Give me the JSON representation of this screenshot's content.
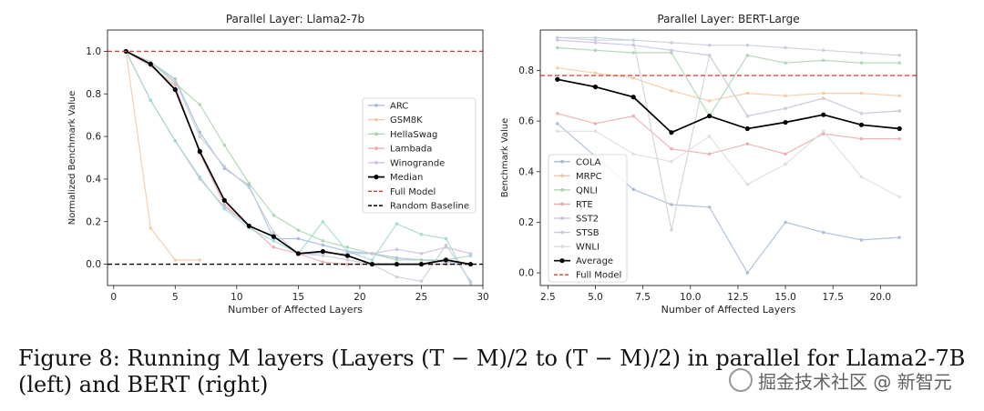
{
  "caption": {
    "line1": "Figure 8: Running M layers (Layers (T − M)/2 to (T − M)/2) in parallel for Llama2-7B",
    "line2": "(left) and BERT (right)"
  },
  "watermark": {
    "text": "掘金技术社区 @ 新智元",
    "icon": "watermark-logo-icon"
  },
  "chart_data": [
    {
      "type": "line",
      "title": "Parallel Layer: Llama2-7b",
      "xlabel": "Number of Affected Layers",
      "ylabel": "Normalized Benchmark Value",
      "xlim": [
        -0.5,
        30
      ],
      "ylim": [
        -0.1,
        1.1
      ],
      "xticks": [
        0,
        5,
        10,
        15,
        20,
        25,
        30
      ],
      "yticks": [
        0.0,
        0.2,
        0.4,
        0.6,
        0.8,
        1.0
      ],
      "legend_position": "center-right",
      "series": [
        {
          "name": "ARC",
          "color": "#a3b9d8",
          "x": [
            1,
            3,
            5,
            7,
            9,
            11,
            13,
            15,
            17,
            19,
            21,
            23,
            25,
            27,
            29
          ],
          "y": [
            1.0,
            0.95,
            0.87,
            0.62,
            0.45,
            0.37,
            0.12,
            0.12,
            0.09,
            0.06,
            0.05,
            0.03,
            0.02,
            0.01,
            0.0
          ]
        },
        {
          "name": "GSM8K",
          "color": "#f3c8a0",
          "x": [
            1,
            3,
            5,
            7
          ],
          "y": [
            1.0,
            0.17,
            0.02,
            0.02
          ]
        },
        {
          "name": "HellaSwag",
          "color": "#a8d3ab",
          "x": [
            1,
            3,
            5,
            7,
            9,
            11,
            13,
            15,
            17,
            19,
            21,
            23,
            25,
            27,
            29
          ],
          "y": [
            1.0,
            0.95,
            0.85,
            0.75,
            0.56,
            0.38,
            0.23,
            0.16,
            0.11,
            0.08,
            0.05,
            0.02,
            0.02,
            0.02,
            0.04
          ]
        },
        {
          "name": "Lambada",
          "color": "#eaa9ad",
          "x": [
            1,
            3,
            5,
            7,
            9,
            11,
            13,
            15,
            17,
            19,
            21,
            23,
            25,
            27,
            29
          ],
          "y": [
            1.0,
            0.93,
            0.84,
            0.52,
            0.28,
            0.18,
            0.08,
            0.05,
            0.01,
            0.0,
            0.0,
            0.0,
            0.0,
            0.0,
            0.0
          ]
        },
        {
          "name": "Winogrande",
          "color": "#cdbde0",
          "x": [
            1,
            3,
            5,
            7,
            9,
            11,
            13,
            15,
            17,
            19,
            21,
            23,
            25,
            27,
            29
          ],
          "y": [
            1.0,
            0.77,
            0.58,
            0.4,
            0.27,
            0.18,
            0.13,
            0.05,
            0.05,
            0.05,
            0.05,
            0.07,
            0.05,
            0.08,
            0.05
          ]
        },
        {
          "name": "_extra",
          "color": "#9ed7d2",
          "legend": false,
          "x": [
            1,
            3,
            5,
            7,
            9,
            11,
            13,
            15,
            17,
            19,
            21,
            23,
            25,
            27,
            29
          ],
          "y": [
            1.0,
            0.77,
            0.58,
            0.41,
            0.26,
            0.17,
            0.11,
            0.05,
            0.2,
            0.06,
            0.02,
            0.19,
            0.14,
            0.12,
            -0.09
          ]
        },
        {
          "name": "_extra2",
          "color": "#c6cdd6",
          "legend": false,
          "x": [
            1,
            3,
            5,
            7,
            9,
            11,
            13,
            15,
            17,
            19,
            21,
            23,
            25,
            27,
            29
          ],
          "y": [
            1.0,
            0.95,
            0.86,
            0.6,
            0.46,
            0.36,
            0.15,
            0.05,
            0.04,
            0.02,
            0.0,
            -0.06,
            -0.08,
            0.09,
            -0.08
          ]
        },
        {
          "name": "Median",
          "color": "#000000",
          "bold": true,
          "x": [
            1,
            3,
            5,
            7,
            9,
            11,
            13,
            15,
            17,
            19,
            21,
            23,
            25,
            27,
            29
          ],
          "y": [
            1.0,
            0.94,
            0.82,
            0.53,
            0.3,
            0.18,
            0.13,
            0.05,
            0.06,
            0.04,
            0.0,
            0.0,
            0.0,
            0.02,
            0.0
          ]
        }
      ],
      "reference_lines": [
        {
          "name": "Full Model",
          "y": 1.0,
          "color": "#d9452c"
        },
        {
          "name": "Random Baseline",
          "y": 0.0,
          "color": "#000000"
        }
      ],
      "legend_entries": [
        "ARC",
        "GSM8K",
        "HellaSwag",
        "Lambada",
        "Winogrande",
        "Median",
        "Full Model",
        "Random Baseline"
      ]
    },
    {
      "type": "line",
      "title": "Parallel Layer: BERT-Large",
      "xlabel": "Number of Affected Layers",
      "ylabel": "Benchmark Value",
      "xlim": [
        2.1,
        21.9
      ],
      "ylim": [
        -0.05,
        0.96
      ],
      "xticks": [
        2.5,
        5.0,
        7.5,
        10.0,
        12.5,
        15.0,
        17.5,
        20.0
      ],
      "xtick_labels": [
        "2.5",
        "5.0",
        "7.5",
        "10.0",
        "12.5",
        "15.0",
        "17.5",
        "20.0"
      ],
      "yticks": [
        0.0,
        0.2,
        0.4,
        0.6,
        0.8
      ],
      "yticks_labels": [
        "0.0",
        "0.2",
        "0.4",
        "0.6",
        "0.8"
      ],
      "legend_position": "lower-left",
      "series": [
        {
          "name": "COLA",
          "color": "#a3b9d8",
          "x": [
            3,
            5,
            7,
            9,
            11,
            13,
            15,
            17,
            19,
            21
          ],
          "y": [
            0.59,
            0.46,
            0.33,
            0.27,
            0.26,
            0.0,
            0.2,
            0.16,
            0.13,
            0.14
          ]
        },
        {
          "name": "MRPC",
          "color": "#f3c8a0",
          "x": [
            3,
            5,
            7,
            9,
            11,
            13,
            15,
            17,
            19,
            21
          ],
          "y": [
            0.81,
            0.79,
            0.77,
            0.72,
            0.68,
            0.71,
            0.7,
            0.71,
            0.71,
            0.7
          ]
        },
        {
          "name": "QNLI",
          "color": "#a8d3ab",
          "x": [
            3,
            5,
            7,
            9,
            11,
            13,
            15,
            17,
            19,
            21
          ],
          "y": [
            0.89,
            0.88,
            0.87,
            0.87,
            0.62,
            0.86,
            0.83,
            0.84,
            0.83,
            0.83
          ]
        },
        {
          "name": "RTE",
          "color": "#eaa9ad",
          "x": [
            3,
            5,
            7,
            9,
            11,
            13,
            15,
            17,
            19,
            21
          ],
          "y": [
            0.63,
            0.59,
            0.62,
            0.49,
            0.47,
            0.51,
            0.47,
            0.55,
            0.53,
            0.53
          ]
        },
        {
          "name": "SST2",
          "color": "#cdbde0",
          "x": [
            3,
            5,
            7,
            9,
            11,
            13,
            15,
            17,
            19,
            21
          ],
          "y": [
            0.92,
            0.91,
            0.9,
            0.88,
            0.86,
            0.62,
            0.65,
            0.69,
            0.63,
            0.64
          ]
        },
        {
          "name": "STSB",
          "color": "#c6cdd6",
          "x": [
            3,
            5,
            7,
            9,
            11,
            13,
            15,
            17,
            19,
            21
          ],
          "y": [
            0.93,
            0.93,
            0.92,
            0.91,
            0.9,
            0.9,
            0.89,
            0.88,
            0.87,
            0.86
          ]
        },
        {
          "name": "WNLI",
          "color": "#dcdcdc",
          "x": [
            3,
            5,
            7,
            9,
            11,
            13,
            15,
            17,
            19,
            21
          ],
          "y": [
            0.56,
            0.56,
            0.47,
            0.44,
            0.54,
            0.35,
            0.43,
            0.56,
            0.38,
            0.3
          ]
        },
        {
          "name": "_extra",
          "color": "#c8d2dc",
          "legend": false,
          "x": [
            3,
            5,
            7,
            9,
            11,
            13,
            15,
            17,
            19,
            21
          ],
          "y": [
            0.93,
            0.92,
            0.92,
            0.17,
            0.86,
            0.62,
            0.65,
            0.69,
            0.63,
            0.64
          ]
        },
        {
          "name": "Average",
          "color": "#000000",
          "bold": true,
          "x": [
            3,
            5,
            7,
            9,
            11,
            13,
            15,
            17,
            19,
            21
          ],
          "y": [
            0.765,
            0.735,
            0.695,
            0.555,
            0.62,
            0.57,
            0.595,
            0.625,
            0.585,
            0.57
          ]
        }
      ],
      "reference_lines": [
        {
          "name": "Full Model",
          "y": 0.78,
          "color": "#d9452c"
        }
      ],
      "legend_entries": [
        "COLA",
        "MRPC",
        "QNLI",
        "RTE",
        "SST2",
        "STSB",
        "WNLI",
        "Average",
        "Full Model"
      ]
    }
  ]
}
